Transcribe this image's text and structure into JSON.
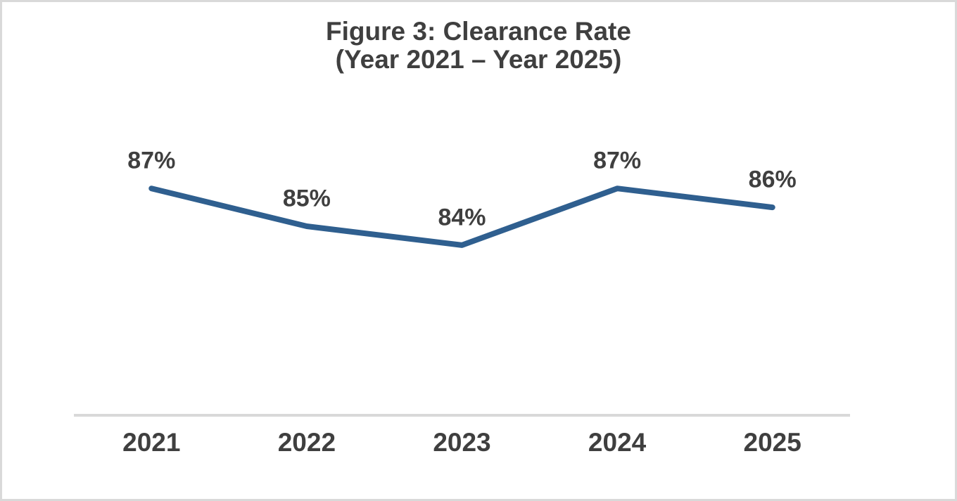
{
  "title": {
    "line1": "Figure 3: Clearance Rate",
    "line2": "(Year 2021 – Year 2025)"
  },
  "chart_data": {
    "type": "line",
    "title": "Figure 3: Clearance Rate (Year 2021 – Year 2025)",
    "categories": [
      "2021",
      "2022",
      "2023",
      "2024",
      "2025"
    ],
    "values": [
      87,
      85,
      84,
      87,
      86
    ],
    "point_labels": [
      "87%",
      "85%",
      "84%",
      "87%",
      "86%"
    ],
    "xlabel": "",
    "ylabel": "",
    "ylim": [
      75,
      97
    ],
    "grid": false,
    "legend": false,
    "line_color": "#2f5f8f",
    "axis_color": "#d9d9d9",
    "text_color": "#3f3f3f",
    "background_color": "#ffffff",
    "border_color": "#d9d9d9"
  }
}
